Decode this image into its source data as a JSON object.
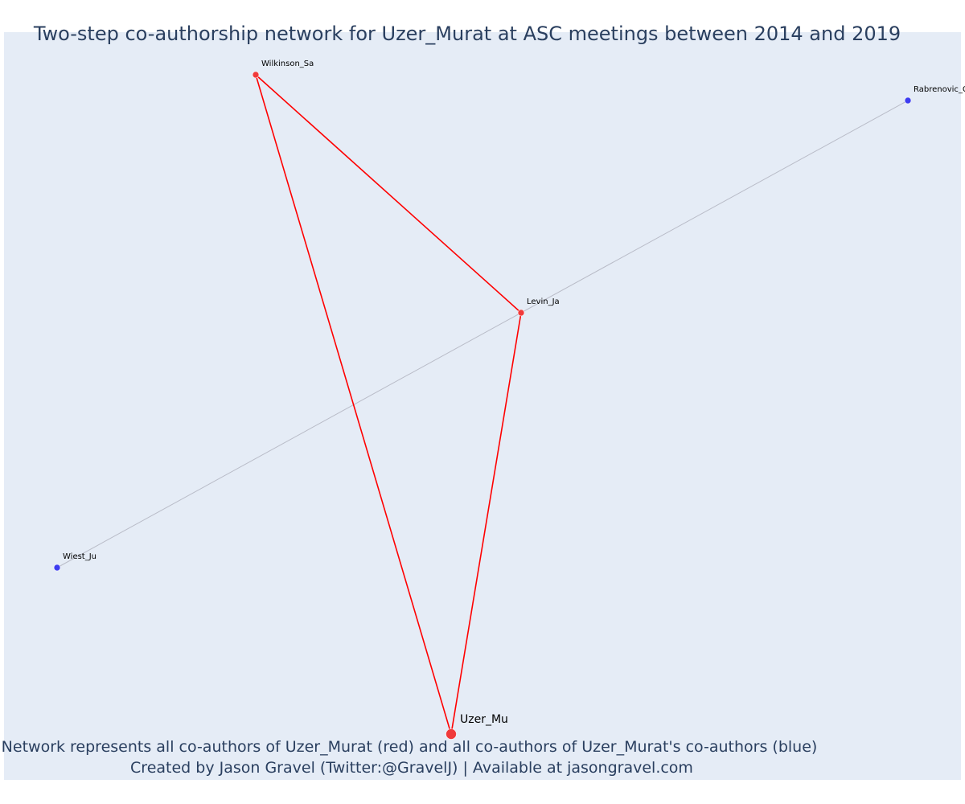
{
  "title": "Two-step co-authorship network for Uzer_Murat at ASC meetings between 2014 and 2019",
  "captions": {
    "line1": "Network represents all co-authors of Uzer_Murat (red) and all co-authors of Uzer_Murat's co-authors (blue)",
    "line2": "Created by Jason Gravel (Twitter:@GravelJ) | Available at jasongravel.com"
  },
  "colors": {
    "first_degree": "#f03a3a",
    "second_degree": "#3d3df0",
    "first_degree_edge": "#ff0000",
    "second_degree_edge": "#b9bcc8",
    "plot_background": "#e5ecf6"
  },
  "network": {
    "nodes": [
      {
        "id": "uzer",
        "label": "Uzer_Mu",
        "group": "ego"
      },
      {
        "id": "wilkinson",
        "label": "Wilkinson_Sa",
        "group": "first_degree"
      },
      {
        "id": "levin",
        "label": "Levin_Ja",
        "group": "first_degree"
      },
      {
        "id": "rabrenovic",
        "label": "Rabrenovic_G",
        "group": "second_degree"
      },
      {
        "id": "wiest",
        "label": "Wiest_Ju",
        "group": "second_degree"
      }
    ],
    "edges": [
      {
        "source": "uzer",
        "target": "wilkinson",
        "type": "first_degree"
      },
      {
        "source": "uzer",
        "target": "levin",
        "type": "first_degree"
      },
      {
        "source": "wilkinson",
        "target": "levin",
        "type": "first_degree"
      },
      {
        "source": "wiest",
        "target": "levin",
        "type": "second_degree"
      },
      {
        "source": "levin",
        "target": "rabrenovic",
        "type": "second_degree"
      }
    ]
  }
}
